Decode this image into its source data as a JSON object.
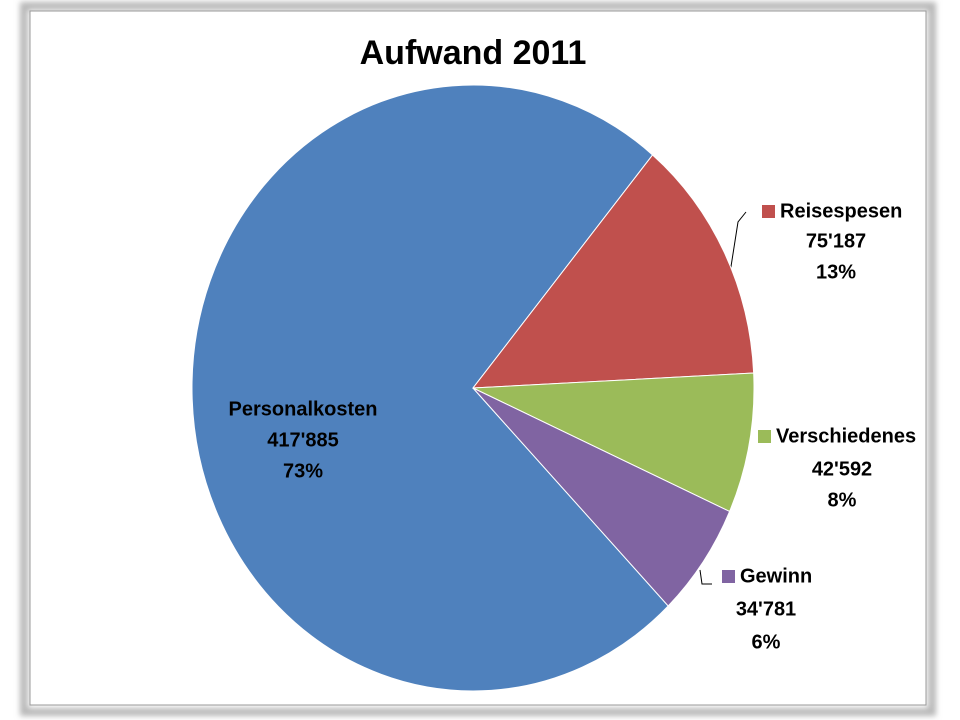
{
  "chart_data": {
    "type": "pie",
    "title": "Aufwand 2011",
    "categories": [
      "Personalkosten",
      "Reisespesen",
      "Verschiedenes",
      "Gewinn"
    ],
    "values": [
      417885,
      75187,
      42592,
      34781
    ],
    "value_labels": [
      "417'885",
      "75'187",
      "42'592",
      "34'781"
    ],
    "percents": [
      73,
      13,
      8,
      6
    ],
    "percent_labels": [
      "73%",
      "13%",
      "8%",
      "6%"
    ],
    "colors": [
      "#4f81bd",
      "#c0504d",
      "#9bbb59",
      "#8064a2"
    ]
  }
}
